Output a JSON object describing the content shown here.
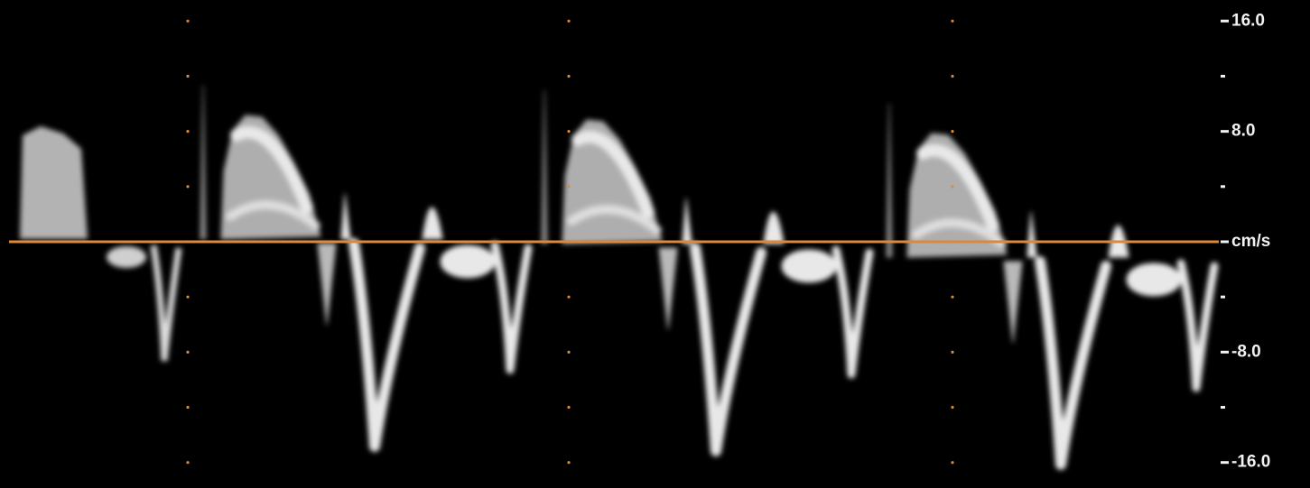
{
  "chart_data": {
    "type": "doppler",
    "ylim": [
      -17,
      17
    ],
    "yticks": [
      {
        "value": 16,
        "label": "16.0"
      },
      {
        "value": 8,
        "label": "8.0"
      },
      {
        "value": 0,
        "label": "cm/s"
      },
      {
        "value": -8,
        "label": "-8.0"
      },
      {
        "value": -16,
        "label": "-16.0"
      }
    ],
    "minor_yticks": [
      12,
      4,
      -4,
      -12
    ],
    "baseline_color": "#d98a3a"
  }
}
